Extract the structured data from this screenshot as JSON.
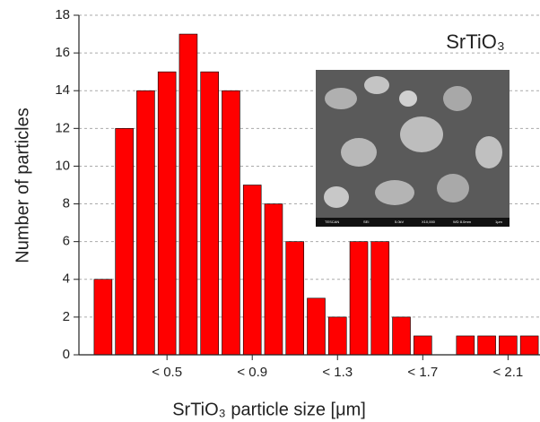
{
  "chart_data": {
    "type": "bar",
    "annotation": "SrTiO₃",
    "x_label": "SrTiO₃ particle size [μm]",
    "y_label": "Number of particles",
    "categories": [
      null,
      null,
      null,
      "< 0.5",
      null,
      null,
      null,
      "< 0.9",
      null,
      null,
      null,
      "< 1.3",
      null,
      null,
      null,
      "< 1.7",
      null,
      null,
      null,
      "< 2.1",
      null
    ],
    "values": [
      4,
      12,
      14,
      15,
      17,
      15,
      14,
      9,
      8,
      6,
      3,
      2,
      6,
      6,
      2,
      1,
      0,
      1,
      1,
      1,
      1
    ],
    "color": "#ff0000",
    "ylim": [
      0,
      18
    ],
    "yticks": [
      0,
      2,
      4,
      6,
      8,
      10,
      12,
      14,
      16,
      18
    ],
    "grid": true,
    "inset_labels": [
      "TESCAN",
      "SEI",
      "5.0kV",
      "X10,000",
      "WD 8.0mm",
      "1μm"
    ]
  }
}
